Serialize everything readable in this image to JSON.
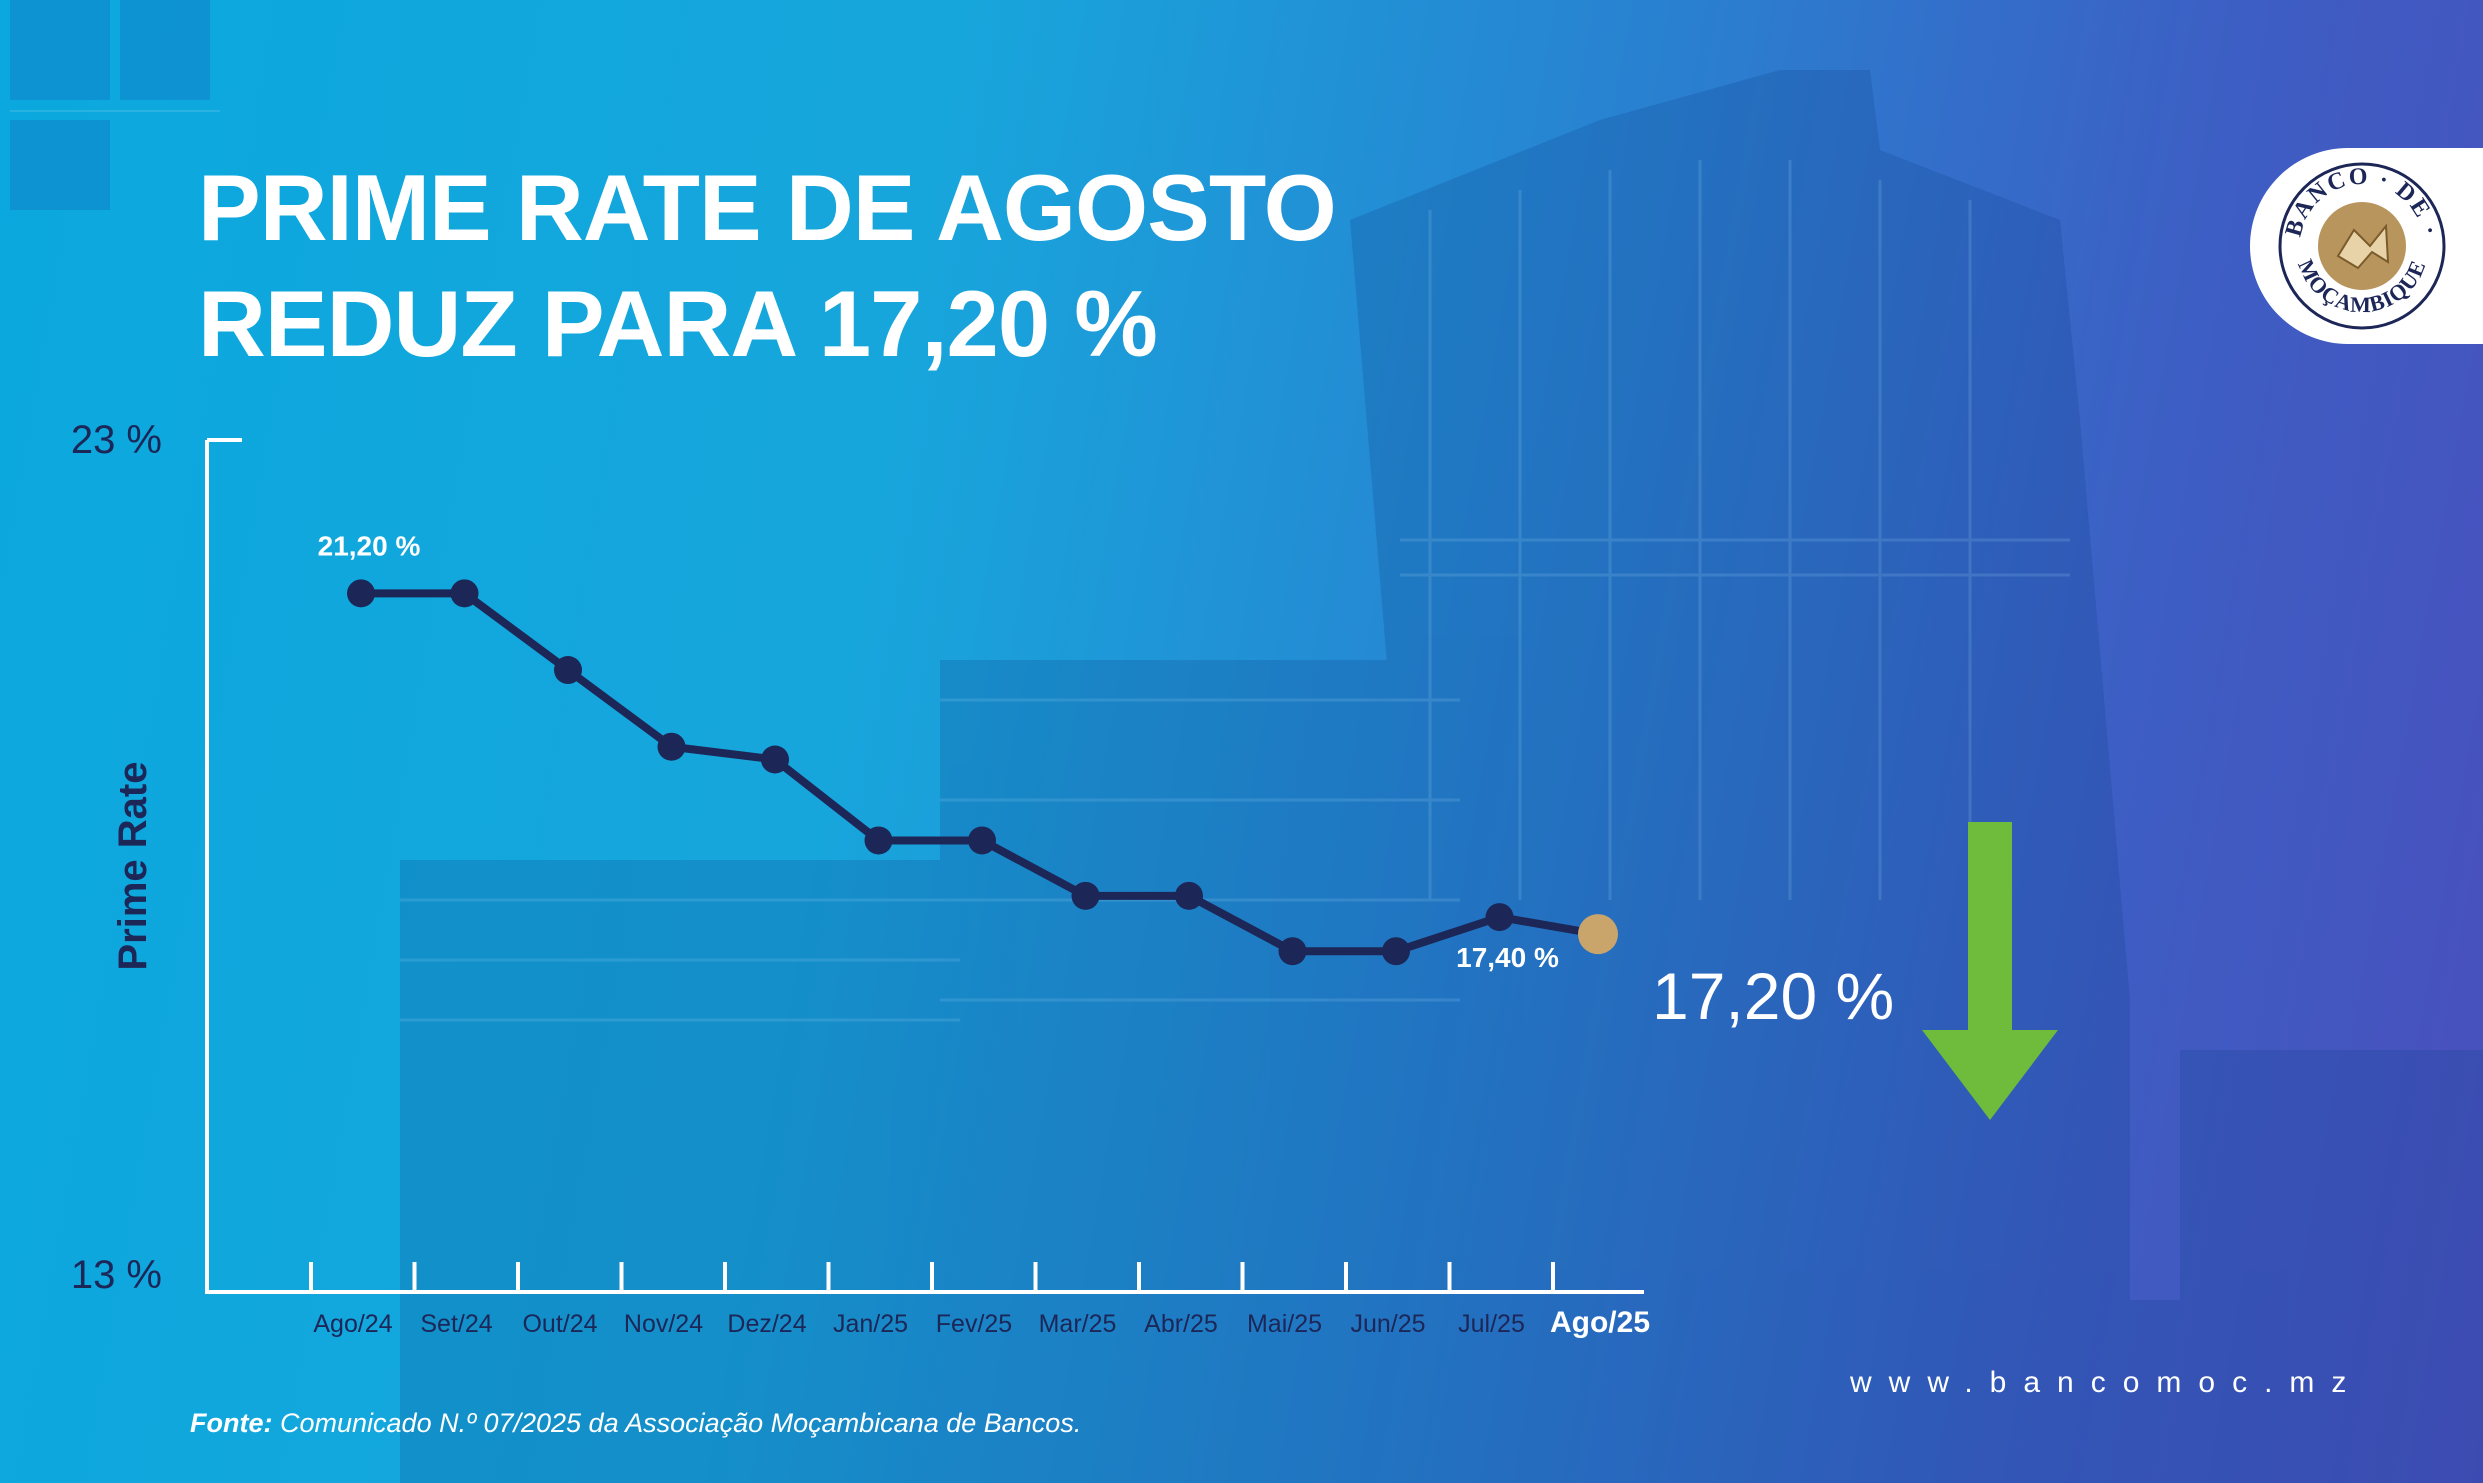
{
  "title": {
    "line1": "PRIME RATE DE AGOSTO",
    "line2": "REDUZ PARA 17,20 %"
  },
  "logo": {
    "text": "BANCO DE MOÇAMBIQUE",
    "icon": "bank-seal-icon"
  },
  "highlight_value": "17,20 %",
  "website": "www.bancomoc.mz",
  "source": {
    "label": "Fonte:",
    "text": "Comunicado N.º 07/2025 da Associação Moçambicana de Bancos."
  },
  "colors": {
    "line": "#1c2657",
    "highlight_point": "#c9a56b",
    "arrow": "#6fbb3b",
    "text": "#ffffff",
    "axis_label": "#1c2657"
  },
  "chart_data": {
    "type": "line",
    "ylabel": "Prime Rate",
    "ylim": [
      13,
      23
    ],
    "ytick_labels": [
      "23 %",
      "13 %"
    ],
    "categories": [
      "Ago/24",
      "Set/24",
      "Out/24",
      "Nov/24",
      "Dez/24",
      "Jan/25",
      "Fev/25",
      "Mar/25",
      "Abr/25",
      "Mai/25",
      "Jun/25",
      "Jul/25",
      "Ago/25"
    ],
    "series": [
      {
        "values": [
          21.2,
          21.2,
          20.3,
          19.4,
          19.25,
          18.3,
          18.3,
          17.65,
          17.65,
          17.0,
          17.0,
          17.4,
          17.2
        ]
      }
    ],
    "data_labels": [
      {
        "index": 0,
        "text": "21,20 %"
      },
      {
        "index": 11,
        "text": "17,40 %"
      }
    ],
    "highlight_index": 12,
    "grid": false
  }
}
